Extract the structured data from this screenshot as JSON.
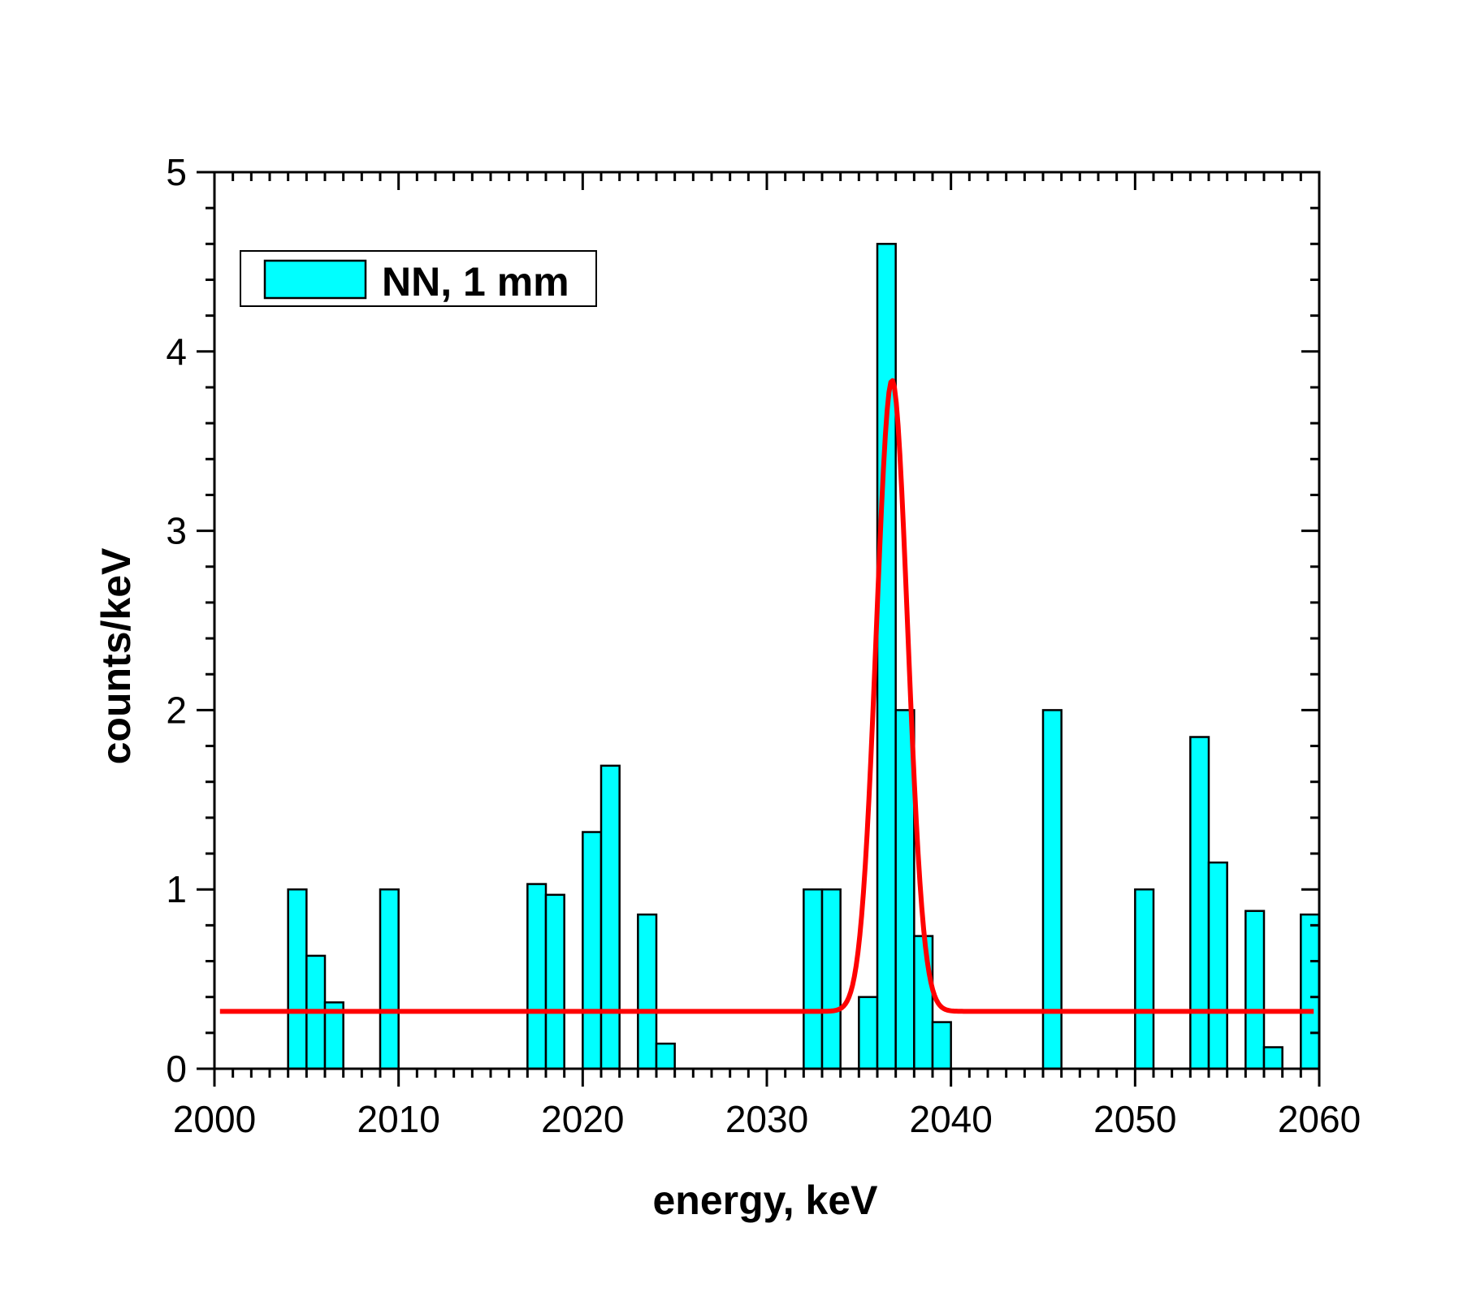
{
  "chart_data": {
    "type": "bar",
    "title": "",
    "xlabel": "energy, keV",
    "ylabel": "counts/keV",
    "xlim": [
      2000,
      2060
    ],
    "ylim": [
      0,
      5
    ],
    "x_ticks": [
      "2000",
      "2010",
      "2020",
      "2030",
      "2040",
      "2050",
      "2060"
    ],
    "y_ticks": [
      "0",
      "1",
      "2",
      "3",
      "4",
      "5"
    ],
    "bin_width_keV": 1,
    "bar_color": "#00FFFF",
    "fit_color": "#FF0000",
    "legend": {
      "position": "top-left",
      "label": "NN, 1 mm"
    },
    "bins": [
      {
        "x": 2004,
        "y": 1.0
      },
      {
        "x": 2005,
        "y": 0.63
      },
      {
        "x": 2006,
        "y": 0.37
      },
      {
        "x": 2009,
        "y": 1.0
      },
      {
        "x": 2017,
        "y": 1.03
      },
      {
        "x": 2018,
        "y": 0.97
      },
      {
        "x": 2020,
        "y": 1.32
      },
      {
        "x": 2021,
        "y": 1.69
      },
      {
        "x": 2023,
        "y": 0.86
      },
      {
        "x": 2024,
        "y": 0.14
      },
      {
        "x": 2032,
        "y": 1.0
      },
      {
        "x": 2033,
        "y": 1.0
      },
      {
        "x": 2035,
        "y": 0.4
      },
      {
        "x": 2036,
        "y": 4.6
      },
      {
        "x": 2037,
        "y": 2.0
      },
      {
        "x": 2038,
        "y": 0.74
      },
      {
        "x": 2039,
        "y": 0.26
      },
      {
        "x": 2045,
        "y": 2.0
      },
      {
        "x": 2050,
        "y": 1.0
      },
      {
        "x": 2053,
        "y": 1.85
      },
      {
        "x": 2054,
        "y": 1.15
      },
      {
        "x": 2056,
        "y": 0.88
      },
      {
        "x": 2057,
        "y": 0.12
      },
      {
        "x": 2059,
        "y": 0.86
      }
    ],
    "fit": {
      "name": "Gaussian fit",
      "baseline": 0.32,
      "amplitude": 3.52,
      "center": 2036.8,
      "sigma": 0.85,
      "x_range": [
        2000.3,
        2059.7
      ]
    }
  }
}
